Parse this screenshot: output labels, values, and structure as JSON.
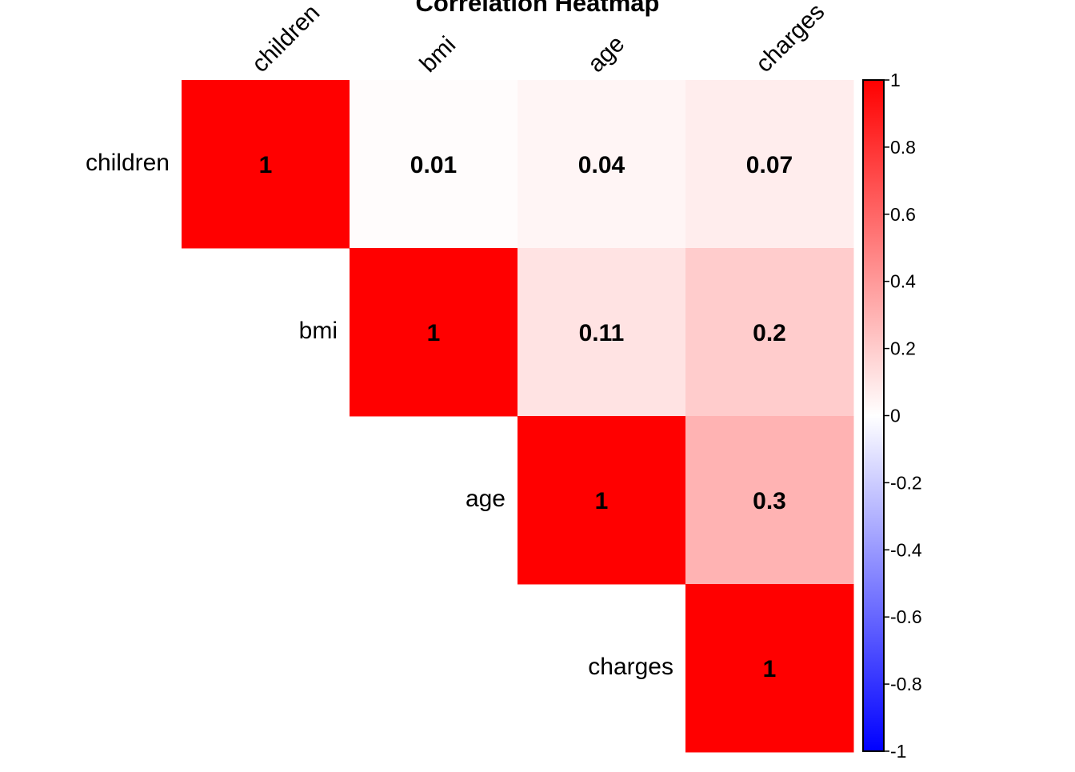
{
  "chart_data": {
    "type": "heatmap",
    "title": "Correlation Heatmap",
    "variables": [
      "children",
      "bmi",
      "age",
      "charges"
    ],
    "matrix": [
      [
        1,
        0.01,
        0.04,
        0.07
      ],
      [
        0.01,
        1,
        0.11,
        0.2
      ],
      [
        0.04,
        0.11,
        1,
        0.3
      ],
      [
        0.07,
        0.2,
        0.3,
        1
      ]
    ],
    "cell_labels": [
      [
        "1",
        "0.01",
        "0.04",
        "0.07"
      ],
      [
        null,
        "1",
        "0.11",
        "0.2"
      ],
      [
        null,
        null,
        "1",
        "0.3"
      ],
      [
        null,
        null,
        null,
        "1"
      ]
    ],
    "display": "upper-triangle",
    "colorbar": {
      "range": [
        -1,
        1
      ],
      "ticks": [
        1,
        0.8,
        0.6,
        0.4,
        0.2,
        0,
        -0.2,
        -0.4,
        -0.6,
        -0.8,
        -1
      ],
      "tick_labels": [
        "1",
        "0.8",
        "0.6",
        "0.4",
        "0.2",
        "0",
        "-0.2",
        "-0.4",
        "-0.6",
        "-0.8",
        "-1"
      ],
      "colors": {
        "low": "#0000ff",
        "mid": "#ffffff",
        "high": "#ff0000"
      }
    }
  }
}
